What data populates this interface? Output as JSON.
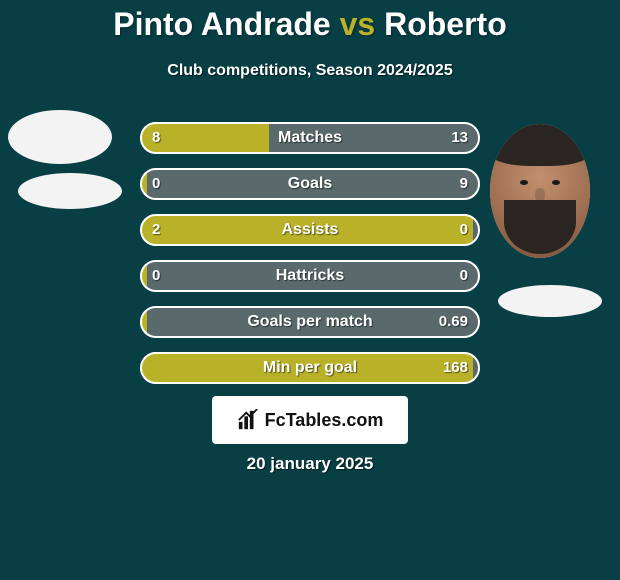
{
  "background_color": "#073f45",
  "title": {
    "parts": [
      {
        "text": "Pinto Andrade",
        "color": "#ffffff"
      },
      {
        "text": " vs ",
        "color": "#b9b228"
      },
      {
        "text": "Roberto",
        "color": "#ffffff"
      }
    ],
    "fontsize": 32
  },
  "subtitle": "Club competitions, Season 2024/2025",
  "players": {
    "left": {
      "name": "Pinto Andrade",
      "has_photo": false
    },
    "right": {
      "name": "Roberto",
      "has_photo": true
    }
  },
  "bar_styling": {
    "left_color": "#b9b228",
    "right_color": "#5a6a6c",
    "border_color": "#ffffff",
    "track_radius": 16,
    "track_height": 32,
    "row_gap": 14,
    "value_text_color": "#ffffff",
    "label_text_color": "#ffffff",
    "label_fontsize": 16,
    "value_fontsize": 15
  },
  "stats": [
    {
      "label": "Matches",
      "left_val": "8",
      "right_val": "13",
      "left_pct": 38,
      "right_pct": 62
    },
    {
      "label": "Goals",
      "left_val": "0",
      "right_val": "9",
      "left_pct": 2,
      "right_pct": 98
    },
    {
      "label": "Assists",
      "left_val": "2",
      "right_val": "0",
      "left_pct": 98,
      "right_pct": 2
    },
    {
      "label": "Hattricks",
      "left_val": "0",
      "right_val": "0",
      "left_pct": 2,
      "right_pct": 2
    },
    {
      "label": "Goals per match",
      "left_val": "",
      "right_val": "0.69",
      "left_pct": 2,
      "right_pct": 98
    },
    {
      "label": "Min per goal",
      "left_val": "",
      "right_val": "168",
      "left_pct": 98,
      "right_pct": 2
    }
  ],
  "footer": {
    "logo_text": "FcTables.com",
    "date": "20 january 2025",
    "logo_bg": "#ffffff",
    "logo_text_color": "#111111"
  }
}
